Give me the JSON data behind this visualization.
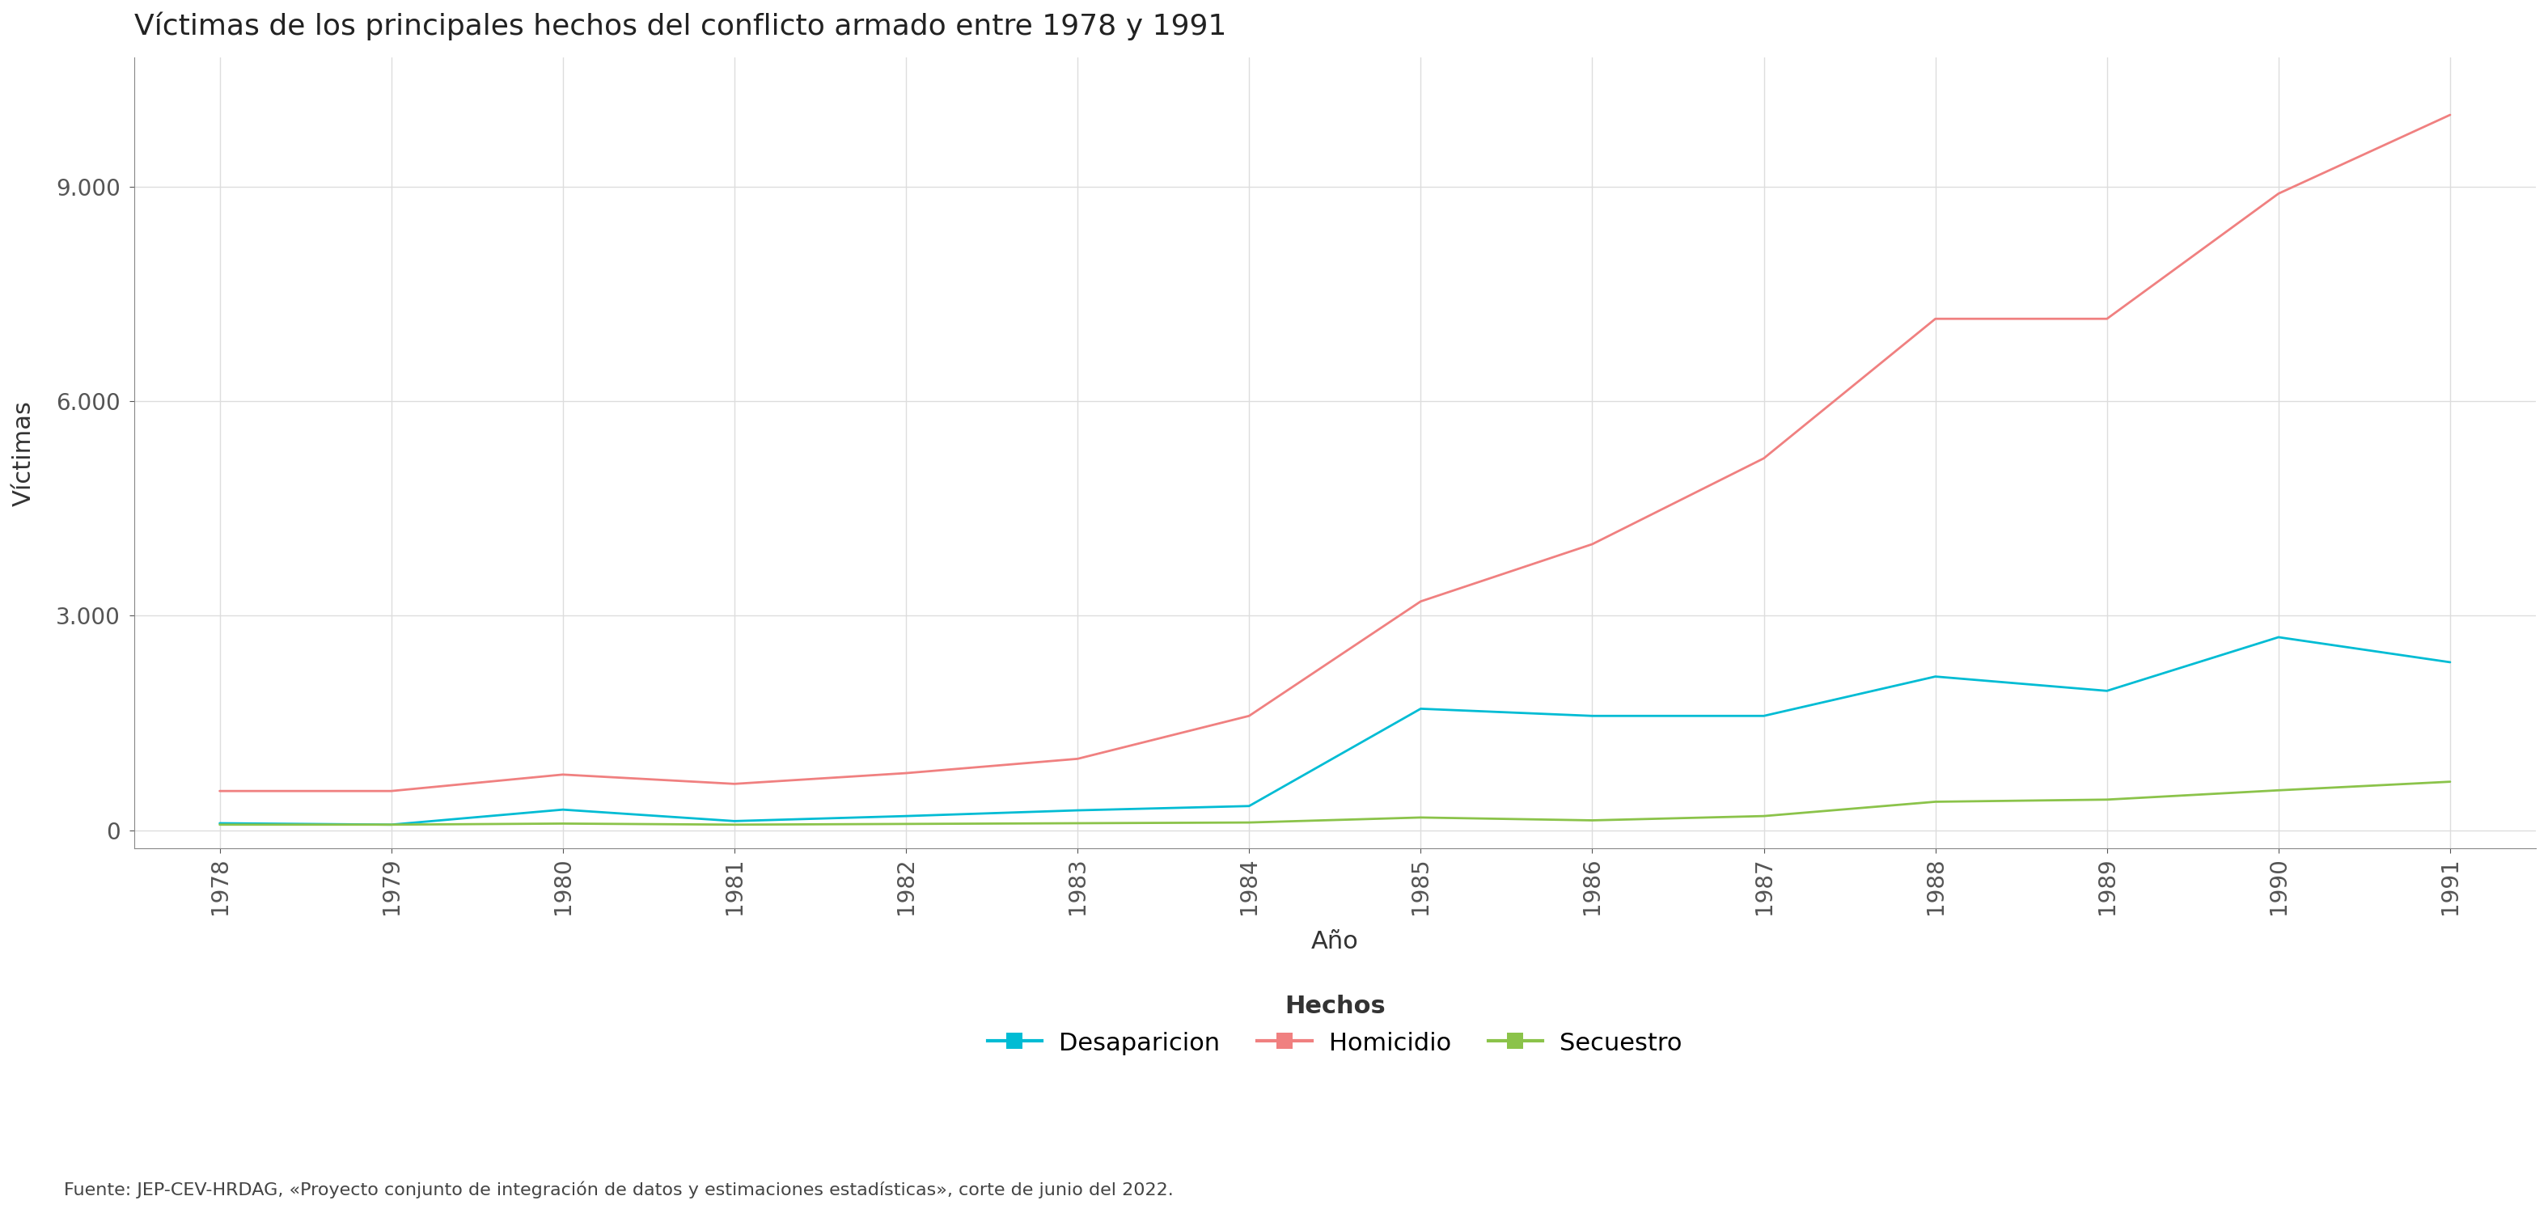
{
  "title": "Víctimas de los principales hechos del conflicto armado entre 1978 y 1991",
  "xlabel": "Año",
  "ylabel": "Víctimas",
  "footnote": "Fuente: JEP-CEV-HRDAG, «Proyecto conjunto de integración de datos y estimaciones estadísticas», corte de junio del 2022.",
  "legend_title": "Hechos",
  "years": [
    1978,
    1979,
    1980,
    1981,
    1982,
    1983,
    1984,
    1985,
    1986,
    1987,
    1988,
    1989,
    1990,
    1991
  ],
  "desaparicion": [
    100,
    80,
    290,
    130,
    200,
    280,
    340,
    1700,
    1600,
    1600,
    2150,
    1950,
    2700,
    2350
  ],
  "homicidio": [
    550,
    550,
    780,
    650,
    800,
    1000,
    1600,
    3200,
    4000,
    5200,
    7150,
    7150,
    8900,
    10000
  ],
  "secuestro": [
    80,
    80,
    95,
    80,
    90,
    100,
    110,
    180,
    140,
    200,
    400,
    430,
    560,
    680
  ],
  "color_desaparicion": "#00BCD4",
  "color_homicidio": "#F08080",
  "color_secuestro": "#8BC34A",
  "bg_color": "#FFFFFF",
  "plot_bg_color": "#FFFFFF",
  "grid_color": "#DDDDDD",
  "axis_color": "#333333",
  "tick_color": "#555555",
  "yticks": [
    0,
    3000,
    6000,
    9000
  ],
  "ylim_min": -250,
  "ylim_max": 10800,
  "xlim_min": 1977.5,
  "xlim_max": 1991.5,
  "linewidth": 2.0,
  "title_fontsize": 26,
  "label_fontsize": 22,
  "tick_fontsize": 20,
  "legend_fontsize": 22,
  "legend_title_fontsize": 22,
  "footnote_fontsize": 16
}
